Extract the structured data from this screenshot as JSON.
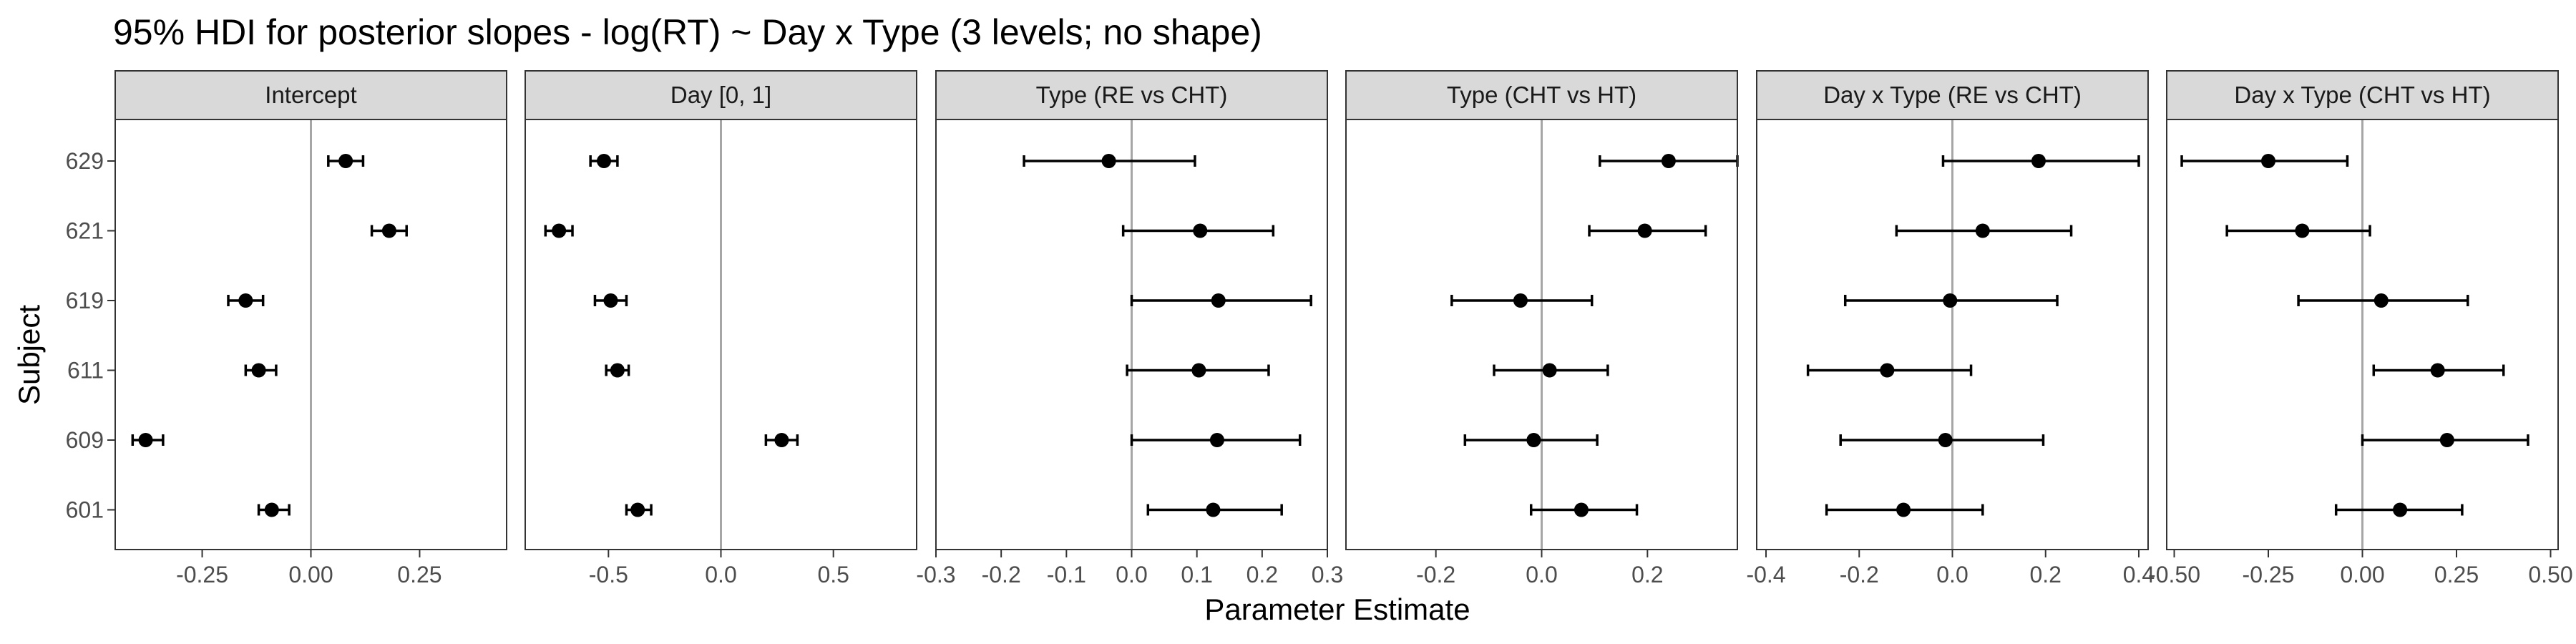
{
  "chart_data": {
    "type": "scatter",
    "title": "95% HDI for posterior slopes - log(RT) ~ Day x Type (3 levels; no shape)",
    "xlabel": "Parameter Estimate",
    "ylabel": "Subject",
    "subjects": [
      "629",
      "621",
      "619",
      "611",
      "609",
      "601"
    ],
    "reference_line": 0,
    "panels": [
      {
        "name": "Intercept",
        "xlim": [
          -0.45,
          0.45
        ],
        "ticks": [
          -0.25,
          0.0,
          0.25
        ],
        "tick_labels": [
          "-0.25",
          "0.00",
          "0.25"
        ],
        "points": [
          {
            "subject": "629",
            "estimate": 0.08,
            "lower": 0.04,
            "upper": 0.12
          },
          {
            "subject": "621",
            "estimate": 0.18,
            "lower": 0.14,
            "upper": 0.22
          },
          {
            "subject": "619",
            "estimate": -0.15,
            "lower": -0.19,
            "upper": -0.11
          },
          {
            "subject": "611",
            "estimate": -0.12,
            "lower": -0.15,
            "upper": -0.08
          },
          {
            "subject": "609",
            "estimate": -0.38,
            "lower": -0.41,
            "upper": -0.34
          },
          {
            "subject": "601",
            "estimate": -0.09,
            "lower": -0.12,
            "upper": -0.05
          }
        ]
      },
      {
        "name": "Day [0, 1]",
        "xlim": [
          -0.87,
          0.87
        ],
        "ticks": [
          -0.5,
          0.0,
          0.5
        ],
        "tick_labels": [
          "-0.5",
          "0.0",
          "0.5"
        ],
        "points": [
          {
            "subject": "629",
            "estimate": -0.52,
            "lower": -0.58,
            "upper": -0.46
          },
          {
            "subject": "621",
            "estimate": -0.72,
            "lower": -0.78,
            "upper": -0.66
          },
          {
            "subject": "619",
            "estimate": -0.49,
            "lower": -0.56,
            "upper": -0.42
          },
          {
            "subject": "611",
            "estimate": -0.46,
            "lower": -0.51,
            "upper": -0.41
          },
          {
            "subject": "609",
            "estimate": 0.27,
            "lower": 0.2,
            "upper": 0.34
          },
          {
            "subject": "601",
            "estimate": -0.37,
            "lower": -0.42,
            "upper": -0.31
          }
        ]
      },
      {
        "name": "Type (RE vs CHT)",
        "xlim": [
          -0.3,
          0.3
        ],
        "ticks": [
          -0.3,
          -0.2,
          -0.1,
          0.0,
          0.1,
          0.2,
          0.3
        ],
        "tick_labels": [
          "-0.3",
          "-0.2",
          "-0.1",
          "0.0",
          "0.1",
          "0.2",
          "0.3"
        ],
        "points": [
          {
            "subject": "629",
            "estimate": -0.035,
            "lower": -0.165,
            "upper": 0.097
          },
          {
            "subject": "621",
            "estimate": 0.105,
            "lower": -0.013,
            "upper": 0.217
          },
          {
            "subject": "619",
            "estimate": 0.133,
            "lower": 0.0,
            "upper": 0.275
          },
          {
            "subject": "611",
            "estimate": 0.103,
            "lower": -0.007,
            "upper": 0.21
          },
          {
            "subject": "609",
            "estimate": 0.131,
            "lower": 0.0,
            "upper": 0.258
          },
          {
            "subject": "601",
            "estimate": 0.125,
            "lower": 0.025,
            "upper": 0.23
          }
        ]
      },
      {
        "name": "Type (CHT vs HT)",
        "xlim": [
          -0.37,
          0.37
        ],
        "ticks": [
          -0.2,
          0.0,
          0.2
        ],
        "tick_labels": [
          "-0.2",
          "0.0",
          "0.2"
        ],
        "points": [
          {
            "subject": "629",
            "estimate": 0.24,
            "lower": 0.11,
            "upper": 0.37
          },
          {
            "subject": "621",
            "estimate": 0.195,
            "lower": 0.09,
            "upper": 0.31
          },
          {
            "subject": "619",
            "estimate": -0.04,
            "lower": -0.17,
            "upper": 0.095
          },
          {
            "subject": "611",
            "estimate": 0.015,
            "lower": -0.09,
            "upper": 0.125
          },
          {
            "subject": "609",
            "estimate": -0.015,
            "lower": -0.145,
            "upper": 0.105
          },
          {
            "subject": "601",
            "estimate": 0.075,
            "lower": -0.02,
            "upper": 0.18
          }
        ]
      },
      {
        "name": "Day x Type (RE vs CHT)",
        "xlim": [
          -0.42,
          0.42
        ],
        "ticks": [
          -0.4,
          -0.2,
          0.0,
          0.2,
          0.4
        ],
        "tick_labels": [
          "-0.4",
          "-0.2",
          "0.0",
          "0.2",
          "0.4"
        ],
        "points": [
          {
            "subject": "629",
            "estimate": 0.185,
            "lower": -0.02,
            "upper": 0.4
          },
          {
            "subject": "621",
            "estimate": 0.065,
            "lower": -0.12,
            "upper": 0.255
          },
          {
            "subject": "619",
            "estimate": -0.005,
            "lower": -0.23,
            "upper": 0.225
          },
          {
            "subject": "611",
            "estimate": -0.14,
            "lower": -0.31,
            "upper": 0.04
          },
          {
            "subject": "609",
            "estimate": -0.015,
            "lower": -0.24,
            "upper": 0.195
          },
          {
            "subject": "601",
            "estimate": -0.105,
            "lower": -0.27,
            "upper": 0.065
          }
        ]
      },
      {
        "name": "Day x Type (CHT vs HT)",
        "xlim": [
          -0.52,
          0.52
        ],
        "ticks": [
          -0.5,
          -0.25,
          0.0,
          0.25,
          0.5
        ],
        "tick_labels": [
          "-0.50",
          "-0.25",
          "0.00",
          "0.25",
          "0.50"
        ],
        "points": [
          {
            "subject": "629",
            "estimate": -0.25,
            "lower": -0.48,
            "upper": -0.04
          },
          {
            "subject": "621",
            "estimate": -0.16,
            "lower": -0.36,
            "upper": 0.02
          },
          {
            "subject": "619",
            "estimate": 0.05,
            "lower": -0.17,
            "upper": 0.28
          },
          {
            "subject": "611",
            "estimate": 0.2,
            "lower": 0.03,
            "upper": 0.375
          },
          {
            "subject": "609",
            "estimate": 0.225,
            "lower": 0.0,
            "upper": 0.44
          },
          {
            "subject": "601",
            "estimate": 0.1,
            "lower": -0.07,
            "upper": 0.265
          }
        ]
      }
    ]
  }
}
